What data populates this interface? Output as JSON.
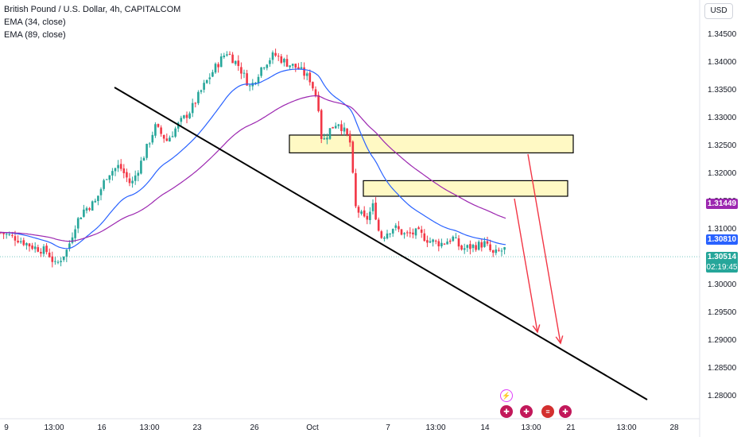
{
  "legend": {
    "symbol_line": "British Pound / U.S. Dollar, 4h, CAPITALCOM",
    "ema1": "EMA (34, close)",
    "ema2": "EMA (89, close)"
  },
  "currency_button": "USD",
  "price_tags": {
    "ema89": {
      "value": "1.31449",
      "color": "#9c27b0"
    },
    "ema34": {
      "value": "1.30810",
      "color": "#2962ff"
    },
    "last": {
      "value": "1.30514",
      "color": "#26a69a"
    },
    "countdown": "02:19:45"
  },
  "colors": {
    "up": "#26a69a",
    "down": "#f23645",
    "ema34": "#2962ff",
    "ema89": "#9c27b0",
    "zone_fill": "#fff9c4",
    "trendline": "#000000",
    "arrow": "#f23645"
  },
  "chart_data": {
    "type": "candlestick",
    "title": "British Pound / U.S. Dollar, 4h, CAPITALCOM",
    "y_axis_ticks": [
      "1.34500",
      "1.34000",
      "1.33500",
      "1.33000",
      "1.32500",
      "1.32000",
      "1.31500",
      "1.31000",
      "1.30500",
      "1.30000",
      "1.29500",
      "1.29000",
      "1.28500",
      "1.28000"
    ],
    "ylim": [
      1.2775,
      1.3475
    ],
    "x_axis_ticks": [
      "9",
      "13:00",
      "16",
      "13:00",
      "23",
      "26",
      "Oct",
      "7",
      "13:00",
      "14",
      "13:00",
      "21",
      "13:00",
      "28"
    ],
    "indicators": [
      {
        "name": "EMA (34, close)",
        "color": "#2962ff",
        "last": 1.3081
      },
      {
        "name": "EMA (89, close)",
        "color": "#9c27b0",
        "last": 1.31449
      }
    ],
    "last_price": 1.30514,
    "drawings": {
      "trendline": "descending support line from ~Sep 18 to ~Oct 28",
      "zones": [
        {
          "top": 1.327,
          "bottom": 1.3238
        },
        {
          "top": 1.3188,
          "bottom": 1.316
        }
      ],
      "arrows": "two red down arrows pointing to the trendline"
    }
  },
  "event_icons": [
    "lightning-icon",
    "flag-gb-icon",
    "flag-gb-icon",
    "flag-us-icon",
    "flag-gb-icon"
  ]
}
